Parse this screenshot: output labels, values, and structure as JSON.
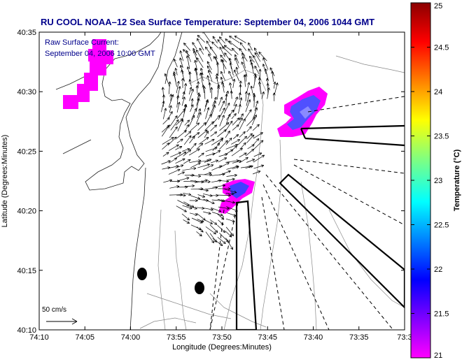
{
  "title": "RU COOL  NOAA–12  Sea Surface Temperature:  September 04, 2006 1044 GMT",
  "overlay": {
    "line1": "Raw Surface Current:",
    "line2": "September 04, 2006 10:00 GMT"
  },
  "axes": {
    "xlabel": "Longitude (Degrees:Minutes)",
    "ylabel": "Latitude (Degrees:Minutes)",
    "xticks": [
      "74:10",
      "74:05",
      "74:00",
      "73:55",
      "73:50",
      "73:45",
      "73:40",
      "73:35",
      "73:3"
    ],
    "yticks": [
      "40:35",
      "40:30",
      "40:25",
      "40:20",
      "40:15",
      "40:10"
    ]
  },
  "scale_label": "50 cm/s",
  "colorbar": {
    "label": "Temperature (°C)",
    "ticks": [
      "25",
      "24.5",
      "24",
      "23.5",
      "23",
      "22.5",
      "22",
      "21.5",
      "21"
    ],
    "min": 21,
    "max": 25,
    "stops": [
      "#8b0000",
      "#ff0000",
      "#ff8000",
      "#ffff00",
      "#80ff80",
      "#00ffff",
      "#0080ff",
      "#0000ff",
      "#8000ff",
      "#ff00ff"
    ]
  },
  "colors": {
    "title": "#00008b",
    "overlay_text": "#00008b",
    "sst_warm_patch": "#ff00ff",
    "sst_cool_patch": "#4040ff"
  }
}
